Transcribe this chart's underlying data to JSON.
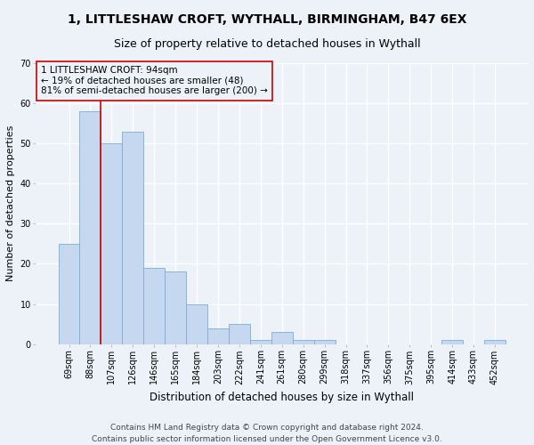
{
  "title1": "1, LITTLESHAW CROFT, WYTHALL, BIRMINGHAM, B47 6EX",
  "title2": "Size of property relative to detached houses in Wythall",
  "xlabel": "Distribution of detached houses by size in Wythall",
  "ylabel": "Number of detached properties",
  "footer1": "Contains HM Land Registry data © Crown copyright and database right 2024.",
  "footer2": "Contains public sector information licensed under the Open Government Licence v3.0.",
  "annotation_line1": "1 LITTLESHAW CROFT: 94sqm",
  "annotation_line2": "← 19% of detached houses are smaller (48)",
  "annotation_line3": "81% of semi-detached houses are larger (200) →",
  "bar_labels": [
    "69sqm",
    "88sqm",
    "107sqm",
    "126sqm",
    "146sqm",
    "165sqm",
    "184sqm",
    "203sqm",
    "222sqm",
    "241sqm",
    "261sqm",
    "280sqm",
    "299sqm",
    "318sqm",
    "337sqm",
    "356sqm",
    "375sqm",
    "395sqm",
    "414sqm",
    "433sqm",
    "452sqm"
  ],
  "bar_values": [
    25,
    58,
    50,
    53,
    19,
    18,
    10,
    4,
    5,
    1,
    3,
    1,
    1,
    0,
    0,
    0,
    0,
    0,
    1,
    0,
    1
  ],
  "bar_color": "#c5d8f0",
  "bar_edge_color": "#7aafd4",
  "red_line_x": 1.5,
  "red_line_color": "#cc0000",
  "ylim": [
    0,
    70
  ],
  "yticks": [
    0,
    10,
    20,
    30,
    40,
    50,
    60,
    70
  ],
  "bg_color": "#edf2f9",
  "grid_color": "#ffffff",
  "title1_fontsize": 10,
  "title2_fontsize": 9,
  "xlabel_fontsize": 8.5,
  "ylabel_fontsize": 8,
  "tick_fontsize": 7,
  "annotation_fontsize": 7.5,
  "footer_fontsize": 6.5
}
